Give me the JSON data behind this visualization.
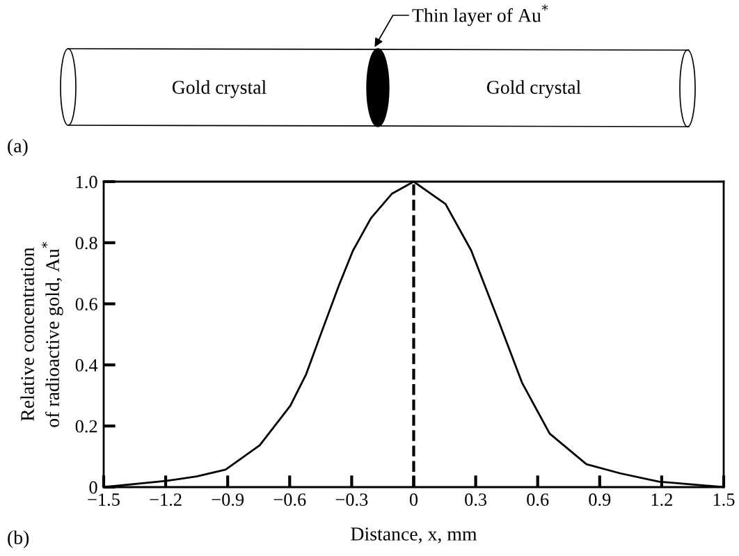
{
  "chart_data": {
    "type": "line",
    "xlabel": "Distance, x, mm",
    "ylabel": "Relative concentration\nof radioactive gold, Au$^{*}$",
    "annotations": [
      "Thin layer of Au$^{*}$",
      "Gold crystal",
      "Gold crystal",
      "(a)",
      "(b)"
    ],
    "series": [
      {
        "color": "#000000",
        "x": [
          -1.5,
          -1.2,
          -1.05,
          -0.91,
          -0.745,
          -0.597,
          -0.52,
          -0.453,
          -0.362,
          -0.294,
          -0.207,
          -0.106,
          0,
          0.154,
          0.278,
          0.413,
          0.524,
          0.658,
          0.836,
          1.0,
          1.186,
          1.5
        ],
        "values": [
          0,
          0.02,
          0.035,
          0.057,
          0.137,
          0.266,
          0.37,
          0.494,
          0.66,
          0.774,
          0.88,
          0.96,
          1.0,
          0.927,
          0.775,
          0.54,
          0.342,
          0.175,
          0.075,
          0.045,
          0.018,
          0
        ]
      }
    ],
    "xlim": [
      -1.5,
      1.5
    ],
    "xticks": [
      {
        "value": -1.5,
        "label": "−1.5"
      },
      {
        "value": -1.2,
        "label": "−1.2"
      },
      {
        "value": -0.9,
        "label": "−0.9"
      },
      {
        "value": -0.6,
        "label": "−0.6"
      },
      {
        "value": -0.3,
        "label": "−0.3"
      },
      0,
      0.3,
      0.6,
      0.9,
      1.2,
      1.5
    ],
    "ylim": [
      0,
      1.0
    ],
    "yticks": [
      0,
      0.2,
      0.4,
      0.6,
      0.8,
      {
        "value": 1.0,
        "label": "1.0"
      }
    ],
    "ref_lines": [
      {
        "axis": "x",
        "value": 0,
        "color": "#000000",
        "line_style": "dashed"
      }
    ],
    "grid": false,
    "legend": false,
    "marker": "none",
    "line_style": "solid"
  }
}
